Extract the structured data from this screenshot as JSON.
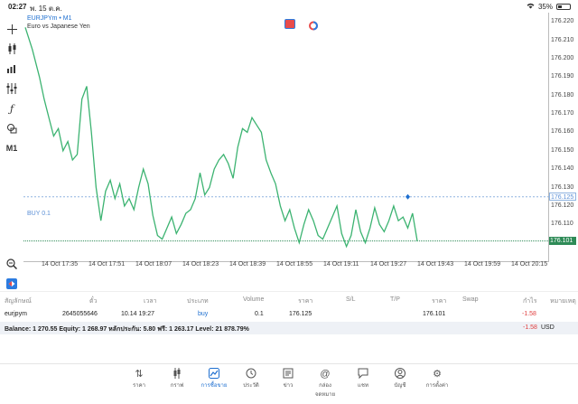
{
  "status_bar": {
    "time": "02:27",
    "date": "พ. 15 ต.ค.",
    "battery": "35%"
  },
  "chart": {
    "symbol": "EURJPYm • M1",
    "description": "Euro vs Japanese Yen",
    "position_label": "BUY 0.1",
    "current_price": "176.101",
    "open_price_tag": "176.125",
    "colors": {
      "line": "#3cb371",
      "buy_line": "#8fb3e0",
      "price_line": "#2e8b57",
      "accent": "#1e6fd0"
    }
  },
  "chart_data": {
    "type": "line",
    "ylim": [
      176.09,
      176.225
    ],
    "ticks_y": [
      "176.220",
      "176.210",
      "176.200",
      "176.190",
      "176.180",
      "176.170",
      "176.160",
      "176.150",
      "176.140",
      "176.130",
      "176.120",
      "176.110",
      "176.100"
    ],
    "ticks_x": [
      "14 Oct 17:35",
      "14 Oct 17:51",
      "14 Oct 18:07",
      "14 Oct 18:23",
      "14 Oct 18:39",
      "14 Oct 18:55",
      "14 Oct 19:11",
      "14 Oct 19:27",
      "14 Oct 19:43",
      "14 Oct 19:59",
      "14 Oct 20:15"
    ],
    "x_range": [
      0,
      100
    ],
    "series": [
      {
        "values": [
          [
            0,
            176.217
          ],
          [
            1.5,
            176.205
          ],
          [
            3,
            176.19
          ],
          [
            4,
            176.178
          ],
          [
            5,
            176.168
          ],
          [
            6,
            176.158
          ],
          [
            7,
            176.162
          ],
          [
            8,
            176.15
          ],
          [
            9,
            176.155
          ],
          [
            10,
            176.145
          ],
          [
            11,
            176.148
          ],
          [
            12,
            176.178
          ],
          [
            13,
            176.185
          ],
          [
            14,
            176.16
          ],
          [
            15,
            176.13
          ],
          [
            16,
            176.112
          ],
          [
            17,
            176.128
          ],
          [
            18,
            176.134
          ],
          [
            19,
            176.124
          ],
          [
            20,
            176.132
          ],
          [
            21,
            176.12
          ],
          [
            22,
            176.124
          ],
          [
            23,
            176.118
          ],
          [
            24,
            176.13
          ],
          [
            25,
            176.14
          ],
          [
            26,
            176.132
          ],
          [
            27,
            176.115
          ],
          [
            28,
            176.104
          ],
          [
            29,
            176.102
          ],
          [
            30,
            176.108
          ],
          [
            31,
            176.114
          ],
          [
            32,
            176.105
          ],
          [
            33,
            176.11
          ],
          [
            34,
            176.116
          ],
          [
            35,
            176.118
          ],
          [
            36,
            176.124
          ],
          [
            37,
            176.138
          ],
          [
            38,
            176.126
          ],
          [
            39,
            176.13
          ],
          [
            40,
            176.14
          ],
          [
            41,
            176.145
          ],
          [
            42,
            176.148
          ],
          [
            43,
            176.143
          ],
          [
            44,
            176.135
          ],
          [
            45,
            176.152
          ],
          [
            46,
            176.162
          ],
          [
            47,
            176.16
          ],
          [
            48,
            176.168
          ],
          [
            49,
            176.164
          ],
          [
            50,
            176.16
          ],
          [
            51,
            176.145
          ],
          [
            52,
            176.138
          ],
          [
            53,
            176.132
          ],
          [
            54,
            176.12
          ],
          [
            55,
            176.112
          ],
          [
            56,
            176.118
          ],
          [
            57,
            176.108
          ],
          [
            58,
            176.1
          ],
          [
            59,
            176.11
          ],
          [
            60,
            176.118
          ],
          [
            61,
            176.112
          ],
          [
            62,
            176.104
          ],
          [
            63,
            176.102
          ],
          [
            64,
            176.108
          ],
          [
            65,
            176.114
          ],
          [
            66,
            176.12
          ],
          [
            67,
            176.105
          ],
          [
            68,
            176.098
          ],
          [
            69,
            176.104
          ],
          [
            70,
            176.118
          ],
          [
            71,
            176.106
          ],
          [
            72,
            176.1
          ],
          [
            73,
            176.108
          ],
          [
            74,
            176.119
          ],
          [
            75,
            176.11
          ],
          [
            76,
            176.106
          ],
          [
            77,
            176.112
          ],
          [
            78,
            176.12
          ],
          [
            79,
            176.112
          ],
          [
            80,
            176.114
          ],
          [
            81,
            176.108
          ],
          [
            82,
            176.116
          ],
          [
            83,
            176.101
          ]
        ]
      }
    ]
  },
  "table": {
    "headers": [
      "สัญลักษณ์",
      "ตั๋ว",
      "เวลา",
      "ประเภท",
      "Volume",
      "ราคา",
      "S/L",
      "T/P",
      "ราคา",
      "Swap",
      "กำไร",
      "หมายเหตุ"
    ],
    "row": {
      "symbol": "eurjpym",
      "ticket": "26450556​46",
      "time": "10.14 19:27",
      "type": "buy",
      "volume": "0.1",
      "open_price": "176.125",
      "current_price": "176.101",
      "profit": "-1.58"
    },
    "balance_text": "Balance: 1 270.55 Equity: 1 268.97 หลักประกัน: 5.80 ฟรี: 1 263.17 Level: 21 878.79%",
    "total_profit": "-1.58",
    "currency": "USD"
  },
  "nav": {
    "items": [
      {
        "label": "ราคา",
        "icon": "quotes-icon"
      },
      {
        "label": "กราฟ",
        "icon": "charts-icon"
      },
      {
        "label": "การซื้อขาย",
        "icon": "trade-icon",
        "active": true
      },
      {
        "label": "ประวัติ",
        "icon": "history-icon"
      },
      {
        "label": "ข่าว",
        "icon": "news-icon"
      },
      {
        "label": "กล่องจดหมาย",
        "icon": "mailbox-icon"
      },
      {
        "label": "แชท",
        "icon": "chat-icon"
      },
      {
        "label": "บัญชี",
        "icon": "account-icon"
      },
      {
        "label": "การตั้งค่า",
        "icon": "settings-icon"
      }
    ]
  },
  "toolbar": {
    "timeframe": "M1",
    "icons": [
      "crosshair-icon",
      "candlestick-icon",
      "bar-chart-icon",
      "indicators-icon",
      "function-icon",
      "objects-icon",
      "timeframe-icon",
      "zoom-icon",
      "chart-settings-icon"
    ]
  }
}
